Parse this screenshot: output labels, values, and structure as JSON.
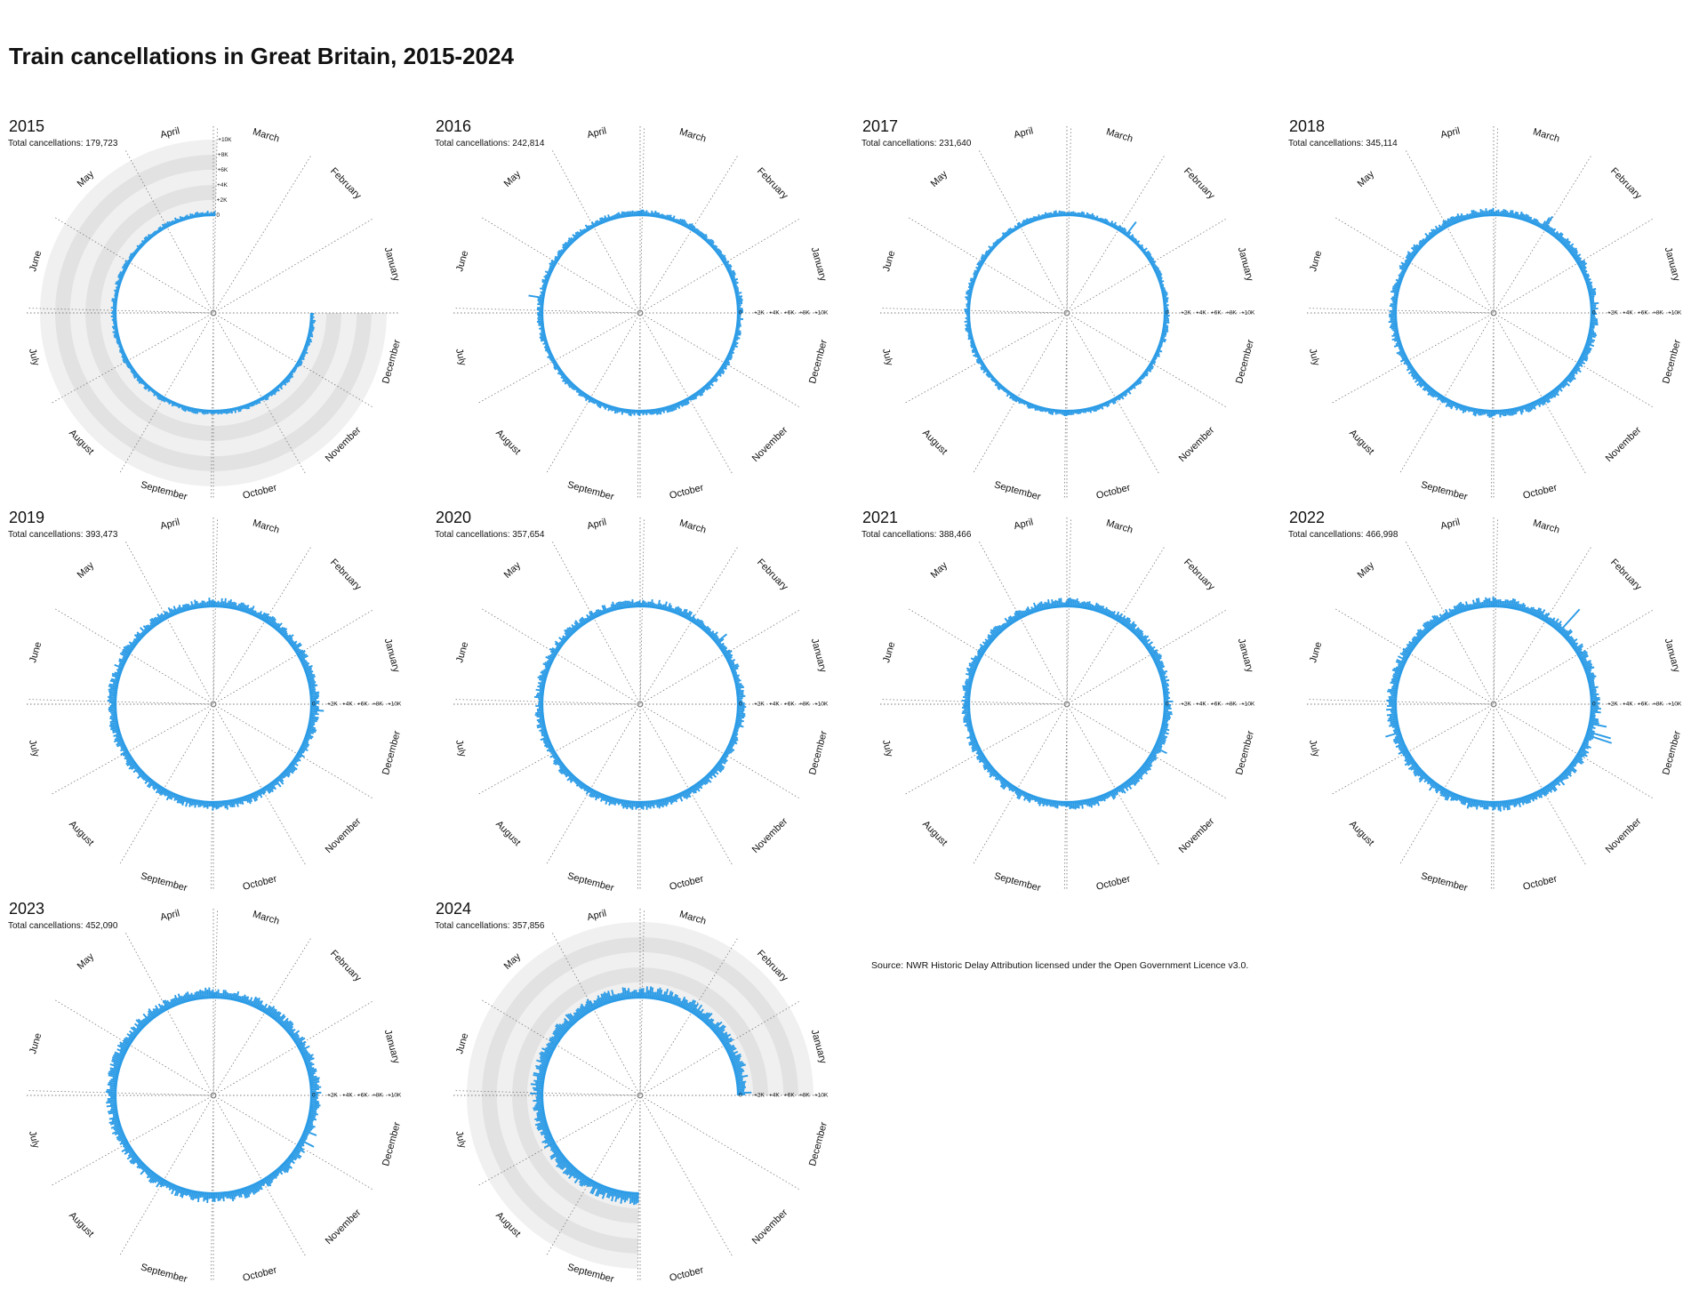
{
  "title": "Train cancellations in Great Britain, 2015-2024",
  "source_note": "Source: NWR Historic Delay Attribution licensed under the Open Government Licence v3.0.",
  "total_prefix": "Total cancellations: ",
  "colors": {
    "bar": "#2b9be6",
    "ring_light": "#f0f0f0",
    "ring_dark": "#e2e2e2",
    "grid": "#7a7a7a"
  },
  "chart_data": {
    "type": "radial-bar",
    "months": [
      "January",
      "February",
      "March",
      "April",
      "May",
      "June",
      "July",
      "August",
      "September",
      "October",
      "November",
      "December"
    ],
    "value_ticks": [
      "0",
      "2K",
      "4K",
      "6K",
      "8K",
      "10K"
    ],
    "ylim": [
      0,
      10000
    ],
    "panels": [
      {
        "year": "2015",
        "total": "179,723",
        "start_month": 4,
        "end_month": 12,
        "daily_cancellations": {
          "typical": 500,
          "spikes": []
        }
      },
      {
        "year": "2016",
        "total": "242,814",
        "start_month": 1,
        "end_month": 12,
        "daily_cancellations": {
          "typical": 600,
          "spikes": [
            {
              "date": "2016-06-23",
              "value": 2000
            }
          ]
        }
      },
      {
        "year": "2017",
        "total": "231,640",
        "start_month": 1,
        "end_month": 12,
        "daily_cancellations": {
          "typical": 550,
          "spikes": [
            {
              "date": "2017-02-23",
              "value": 2200
            }
          ]
        }
      },
      {
        "year": "2018",
        "total": "345,114",
        "start_month": 1,
        "end_month": 12,
        "daily_cancellations": {
          "typical": 800,
          "spikes": [
            {
              "date": "2018-03-01",
              "value": 2000
            },
            {
              "date": "2018-03-02",
              "value": 1700
            }
          ]
        }
      },
      {
        "year": "2019",
        "total": "393,473",
        "start_month": 1,
        "end_month": 12,
        "daily_cancellations": {
          "typical": 900,
          "spikes": [
            {
              "date": "2019-12-28",
              "value": 1700
            }
          ]
        }
      },
      {
        "year": "2020",
        "total": "357,654",
        "start_month": 1,
        "end_month": 12,
        "daily_cancellations": {
          "typical": 850,
          "spikes": [
            {
              "date": "2020-02-09",
              "value": 1800
            }
          ]
        }
      },
      {
        "year": "2021",
        "total": "388,466",
        "start_month": 1,
        "end_month": 12,
        "daily_cancellations": {
          "typical": 900,
          "spikes": [
            {
              "date": "2021-12-05",
              "value": 1800
            }
          ]
        }
      },
      {
        "year": "2022",
        "total": "466,998",
        "start_month": 1,
        "end_month": 12,
        "daily_cancellations": {
          "typical": 1000,
          "spikes": [
            {
              "date": "2022-02-18",
              "value": 4000
            },
            {
              "date": "2022-07-19",
              "value": 2000
            },
            {
              "date": "2022-12-13",
              "value": 3500
            },
            {
              "date": "2022-12-15",
              "value": 3200
            },
            {
              "date": "2022-12-20",
              "value": 2300
            }
          ]
        }
      },
      {
        "year": "2023",
        "total": "452,090",
        "start_month": 1,
        "end_month": 12,
        "daily_cancellations": {
          "typical": 1050,
          "spikes": [
            {
              "date": "2023-12-04",
              "value": 2000
            },
            {
              "date": "2023-12-10",
              "value": 1700
            }
          ]
        }
      },
      {
        "year": "2024",
        "total": "357,856",
        "start_month": 1,
        "end_month": 9,
        "daily_cancellations": {
          "typical": 1250,
          "spikes": [
            {
              "date": "2024-01-02",
              "value": 1800
            }
          ]
        }
      }
    ]
  }
}
